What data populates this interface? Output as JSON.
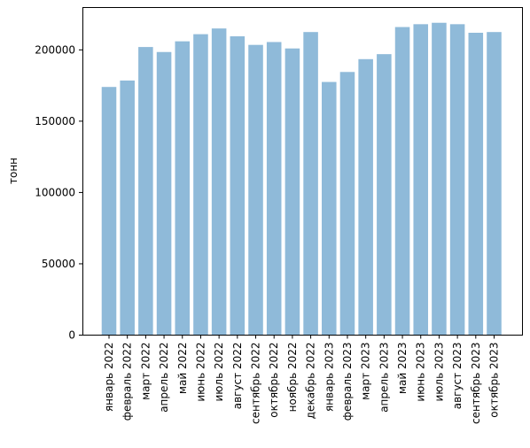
{
  "chart_data": {
    "type": "bar",
    "title": "",
    "xlabel": "",
    "ylabel": "тонн",
    "ylim": [
      0,
      230000
    ],
    "yticks": [
      0,
      50000,
      100000,
      150000,
      200000
    ],
    "grid": false,
    "bar_color": "#8fbad9",
    "categories": [
      "январь 2022",
      "февраль 2022",
      "март 2022",
      "апрель 2022",
      "май 2022",
      "июнь 2022",
      "июль 2022",
      "август 2022",
      "сентябрь 2022",
      "октябрь 2022",
      "ноябрь 2022",
      "декабрь 2022",
      "январь 2023",
      "февраль 2023",
      "март 2023",
      "апрель 2023",
      "май 2023",
      "июнь 2023",
      "июль 2023",
      "август 2023",
      "сентябрь 2023",
      "октябрь 2023"
    ],
    "values": [
      174000,
      178500,
      202000,
      198500,
      206000,
      211000,
      215000,
      209500,
      203500,
      205500,
      201000,
      212500,
      177500,
      184500,
      193500,
      197000,
      216000,
      218000,
      219000,
      218000,
      212000,
      212500
    ]
  }
}
